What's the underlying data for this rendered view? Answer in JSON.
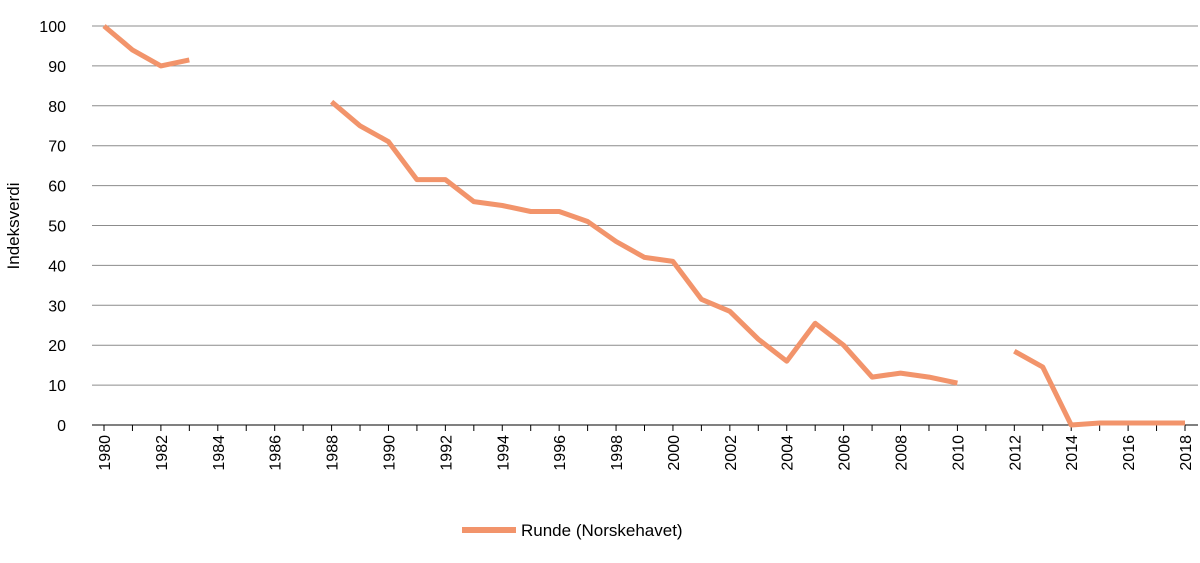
{
  "chart_data": {
    "type": "line",
    "title": "",
    "xlabel": "",
    "ylabel": "Indeksverdi",
    "ylim": [
      0,
      100
    ],
    "xlim": [
      1980,
      2018
    ],
    "y_ticks": [
      "0",
      "10",
      "20",
      "30",
      "40",
      "50",
      "60",
      "70",
      "80",
      "90",
      "100"
    ],
    "x_ticks": [
      "1980",
      "1982",
      "1984",
      "1986",
      "1988",
      "1990",
      "1992",
      "1994",
      "1996",
      "1998",
      "2000",
      "2002",
      "2004",
      "2006",
      "2008",
      "2010",
      "2012",
      "2014",
      "2016",
      "2018"
    ],
    "grid": "horizontal",
    "legend_position": "bottom",
    "series": [
      {
        "name": "Runde (Norskehavet)",
        "color": "#F2946B",
        "points": [
          [
            1980,
            100
          ],
          [
            1981,
            94
          ],
          [
            1982,
            90
          ],
          [
            1983,
            91.5
          ],
          [
            1984,
            null
          ],
          [
            1985,
            null
          ],
          [
            1986,
            null
          ],
          [
            1987,
            null
          ],
          [
            1988,
            81
          ],
          [
            1989,
            75
          ],
          [
            1990,
            71
          ],
          [
            1991,
            61.5
          ],
          [
            1992,
            61.5
          ],
          [
            1993,
            56
          ],
          [
            1994,
            55
          ],
          [
            1995,
            53.5
          ],
          [
            1996,
            53.5
          ],
          [
            1997,
            51
          ],
          [
            1998,
            46
          ],
          [
            1999,
            42
          ],
          [
            2000,
            41
          ],
          [
            2001,
            31.5
          ],
          [
            2002,
            28.5
          ],
          [
            2003,
            21.5
          ],
          [
            2004,
            16
          ],
          [
            2005,
            25.5
          ],
          [
            2006,
            20
          ],
          [
            2007,
            12
          ],
          [
            2008,
            13
          ],
          [
            2009,
            12
          ],
          [
            2010,
            10.5
          ],
          [
            2011,
            null
          ],
          [
            2012,
            18.5
          ],
          [
            2013,
            14.5
          ],
          [
            2014,
            0
          ],
          [
            2015,
            0.5
          ],
          [
            2016,
            0.5
          ],
          [
            2017,
            0.5
          ],
          [
            2018,
            0.5
          ]
        ]
      }
    ]
  }
}
